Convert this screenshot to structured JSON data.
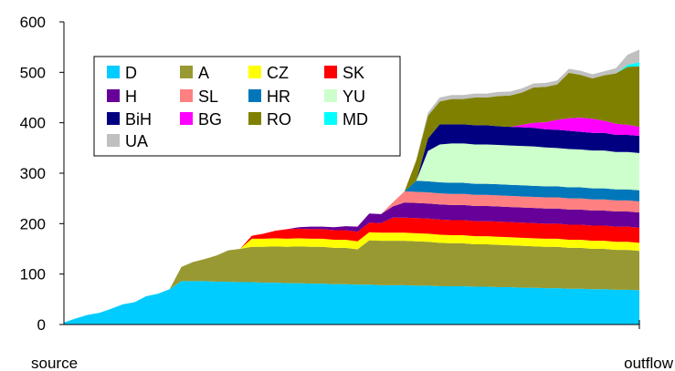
{
  "chart_data": {
    "type": "area",
    "stacked": true,
    "title": "",
    "xlabel": "",
    "ylabel": "",
    "x_end_labels": {
      "left": "source",
      "right": "outflow"
    },
    "ylim": [
      0,
      600
    ],
    "yticks": [
      0,
      100,
      200,
      300,
      400,
      500,
      600
    ],
    "grid": false,
    "legend_position": "top-left-inside",
    "x": [
      0,
      1,
      2,
      3,
      4,
      5,
      6,
      7,
      8,
      9,
      10,
      11,
      12,
      13,
      14,
      15,
      16,
      17,
      18,
      19,
      20,
      21,
      22,
      23,
      24,
      25,
      26,
      27,
      28,
      29,
      30,
      31,
      32,
      33,
      34,
      35,
      36,
      37,
      38,
      39,
      40,
      41,
      42,
      43,
      44,
      45,
      46,
      47,
      48,
      49
    ],
    "series": [
      {
        "name": "D",
        "color": "#00ccff",
        "values": [
          4,
          12,
          19,
          23,
          31,
          40,
          44,
          56,
          61,
          70,
          86,
          86,
          86,
          85,
          85,
          84,
          84,
          83,
          83,
          82,
          82,
          81,
          81,
          80,
          80,
          79,
          79,
          78,
          78,
          78,
          77,
          77,
          76,
          76,
          76,
          75,
          75,
          74,
          74,
          73,
          73,
          72,
          72,
          71,
          71,
          70,
          70,
          69,
          69,
          68
        ]
      },
      {
        "name": "A",
        "color": "#999933",
        "values": [
          0,
          0,
          0,
          0,
          0,
          0,
          0,
          0,
          0,
          0,
          28,
          38,
          44,
          52,
          62,
          66,
          70,
          71,
          72,
          72,
          73,
          73,
          73,
          72,
          72,
          70,
          88,
          88,
          88,
          88,
          88,
          87,
          86,
          85,
          85,
          84,
          84,
          84,
          83,
          83,
          82,
          82,
          82,
          81,
          81,
          80,
          80,
          79,
          79,
          78
        ]
      },
      {
        "name": "CZ",
        "color": "#ffff00",
        "values": [
          0,
          0,
          0,
          0,
          0,
          0,
          0,
          0,
          0,
          0,
          0,
          0,
          0,
          0,
          0,
          0,
          16,
          16,
          16,
          16,
          16,
          16,
          16,
          16,
          16,
          16,
          16,
          16,
          16,
          16,
          16,
          16,
          16,
          16,
          16,
          16,
          16,
          16,
          16,
          16,
          16,
          16,
          16,
          16,
          16,
          16,
          16,
          16,
          16,
          16
        ]
      },
      {
        "name": "SK",
        "color": "#ff0000",
        "values": [
          0,
          0,
          0,
          0,
          0,
          0,
          0,
          0,
          0,
          0,
          0,
          0,
          0,
          0,
          0,
          0,
          6,
          10,
          15,
          19,
          19,
          19,
          19,
          19,
          19,
          19,
          19,
          19,
          30,
          30,
          30,
          30,
          30,
          30,
          30,
          30,
          30,
          30,
          30,
          30,
          30,
          30,
          30,
          30,
          30,
          30,
          30,
          30,
          30,
          30
        ]
      },
      {
        "name": "H",
        "color": "#660099",
        "values": [
          0,
          0,
          0,
          0,
          0,
          0,
          0,
          0,
          0,
          0,
          0,
          0,
          0,
          0,
          0,
          0,
          0,
          0,
          0,
          0,
          3,
          5,
          5,
          6,
          8,
          10,
          18,
          18,
          22,
          30,
          30,
          30,
          30,
          30,
          30,
          30,
          30,
          30,
          30,
          30,
          30,
          30,
          30,
          30,
          30,
          30,
          30,
          30,
          30,
          30
        ]
      },
      {
        "name": "SL",
        "color": "#ff8080",
        "values": [
          0,
          0,
          0,
          0,
          0,
          0,
          0,
          0,
          0,
          0,
          0,
          0,
          0,
          0,
          0,
          0,
          0,
          0,
          0,
          0,
          0,
          0,
          0,
          0,
          0,
          0,
          0,
          0,
          8,
          22,
          22,
          22,
          22,
          22,
          22,
          22,
          22,
          22,
          22,
          22,
          22,
          22,
          22,
          22,
          22,
          22,
          22,
          22,
          22,
          22
        ]
      },
      {
        "name": "HR",
        "color": "#0077bb",
        "values": [
          0,
          0,
          0,
          0,
          0,
          0,
          0,
          0,
          0,
          0,
          0,
          0,
          0,
          0,
          0,
          0,
          0,
          0,
          0,
          0,
          0,
          0,
          0,
          0,
          0,
          0,
          0,
          0,
          0,
          0,
          22,
          22,
          22,
          22,
          22,
          22,
          22,
          22,
          22,
          22,
          22,
          22,
          22,
          22,
          22,
          22,
          22,
          22,
          22,
          22
        ]
      },
      {
        "name": "YU",
        "color": "#ccffcc",
        "values": [
          0,
          0,
          0,
          0,
          0,
          0,
          0,
          0,
          0,
          0,
          0,
          0,
          0,
          0,
          0,
          0,
          0,
          0,
          0,
          0,
          0,
          0,
          0,
          0,
          0,
          0,
          0,
          0,
          0,
          0,
          0,
          60,
          75,
          78,
          78,
          78,
          78,
          78,
          78,
          78,
          78,
          77,
          76,
          76,
          75,
          75,
          75,
          74,
          74,
          74
        ]
      },
      {
        "name": "BiH",
        "color": "#000080",
        "values": [
          0,
          0,
          0,
          0,
          0,
          0,
          0,
          0,
          0,
          0,
          0,
          0,
          0,
          0,
          0,
          0,
          0,
          0,
          0,
          0,
          0,
          0,
          0,
          0,
          0,
          0,
          0,
          0,
          0,
          0,
          0,
          25,
          40,
          38,
          38,
          38,
          38,
          37,
          37,
          37,
          37,
          36,
          36,
          36,
          35,
          35,
          35,
          34,
          34,
          34
        ]
      },
      {
        "name": "BG",
        "color": "#ff00ff",
        "values": [
          0,
          0,
          0,
          0,
          0,
          0,
          0,
          0,
          0,
          0,
          0,
          0,
          0,
          0,
          0,
          0,
          0,
          0,
          0,
          0,
          0,
          0,
          0,
          0,
          0,
          0,
          0,
          0,
          0,
          0,
          0,
          0,
          0,
          0,
          0,
          0,
          0,
          0,
          0,
          5,
          10,
          14,
          20,
          25,
          28,
          28,
          24,
          22,
          20,
          18
        ]
      },
      {
        "name": "RO",
        "color": "#808000",
        "values": [
          0,
          0,
          0,
          0,
          0,
          0,
          0,
          0,
          0,
          0,
          0,
          0,
          0,
          0,
          0,
          0,
          0,
          0,
          0,
          0,
          0,
          0,
          0,
          0,
          0,
          0,
          0,
          0,
          0,
          0,
          40,
          45,
          45,
          50,
          50,
          55,
          55,
          60,
          62,
          64,
          70,
          70,
          70,
          90,
          85,
          80,
          90,
          100,
          115,
          120
        ]
      },
      {
        "name": "MD",
        "color": "#00ffff",
        "values": [
          0,
          0,
          0,
          0,
          0,
          0,
          0,
          0,
          0,
          0,
          0,
          0,
          0,
          0,
          0,
          0,
          0,
          0,
          0,
          0,
          0,
          0,
          0,
          0,
          0,
          0,
          0,
          0,
          0,
          0,
          0,
          0,
          0,
          0,
          0,
          0,
          0,
          0,
          0,
          0,
          0,
          0,
          0,
          0,
          0,
          0,
          0,
          0,
          4,
          8
        ]
      },
      {
        "name": "UA",
        "color": "#c0c0c0",
        "values": [
          0,
          0,
          0,
          0,
          0,
          0,
          0,
          0,
          0,
          0,
          0,
          0,
          0,
          0,
          0,
          0,
          0,
          0,
          0,
          0,
          0,
          0,
          0,
          0,
          0,
          0,
          0,
          0,
          0,
          0,
          2,
          6,
          8,
          8,
          8,
          8,
          8,
          8,
          8,
          8,
          8,
          8,
          8,
          8,
          8,
          8,
          8,
          10,
          20,
          25
        ]
      }
    ]
  }
}
